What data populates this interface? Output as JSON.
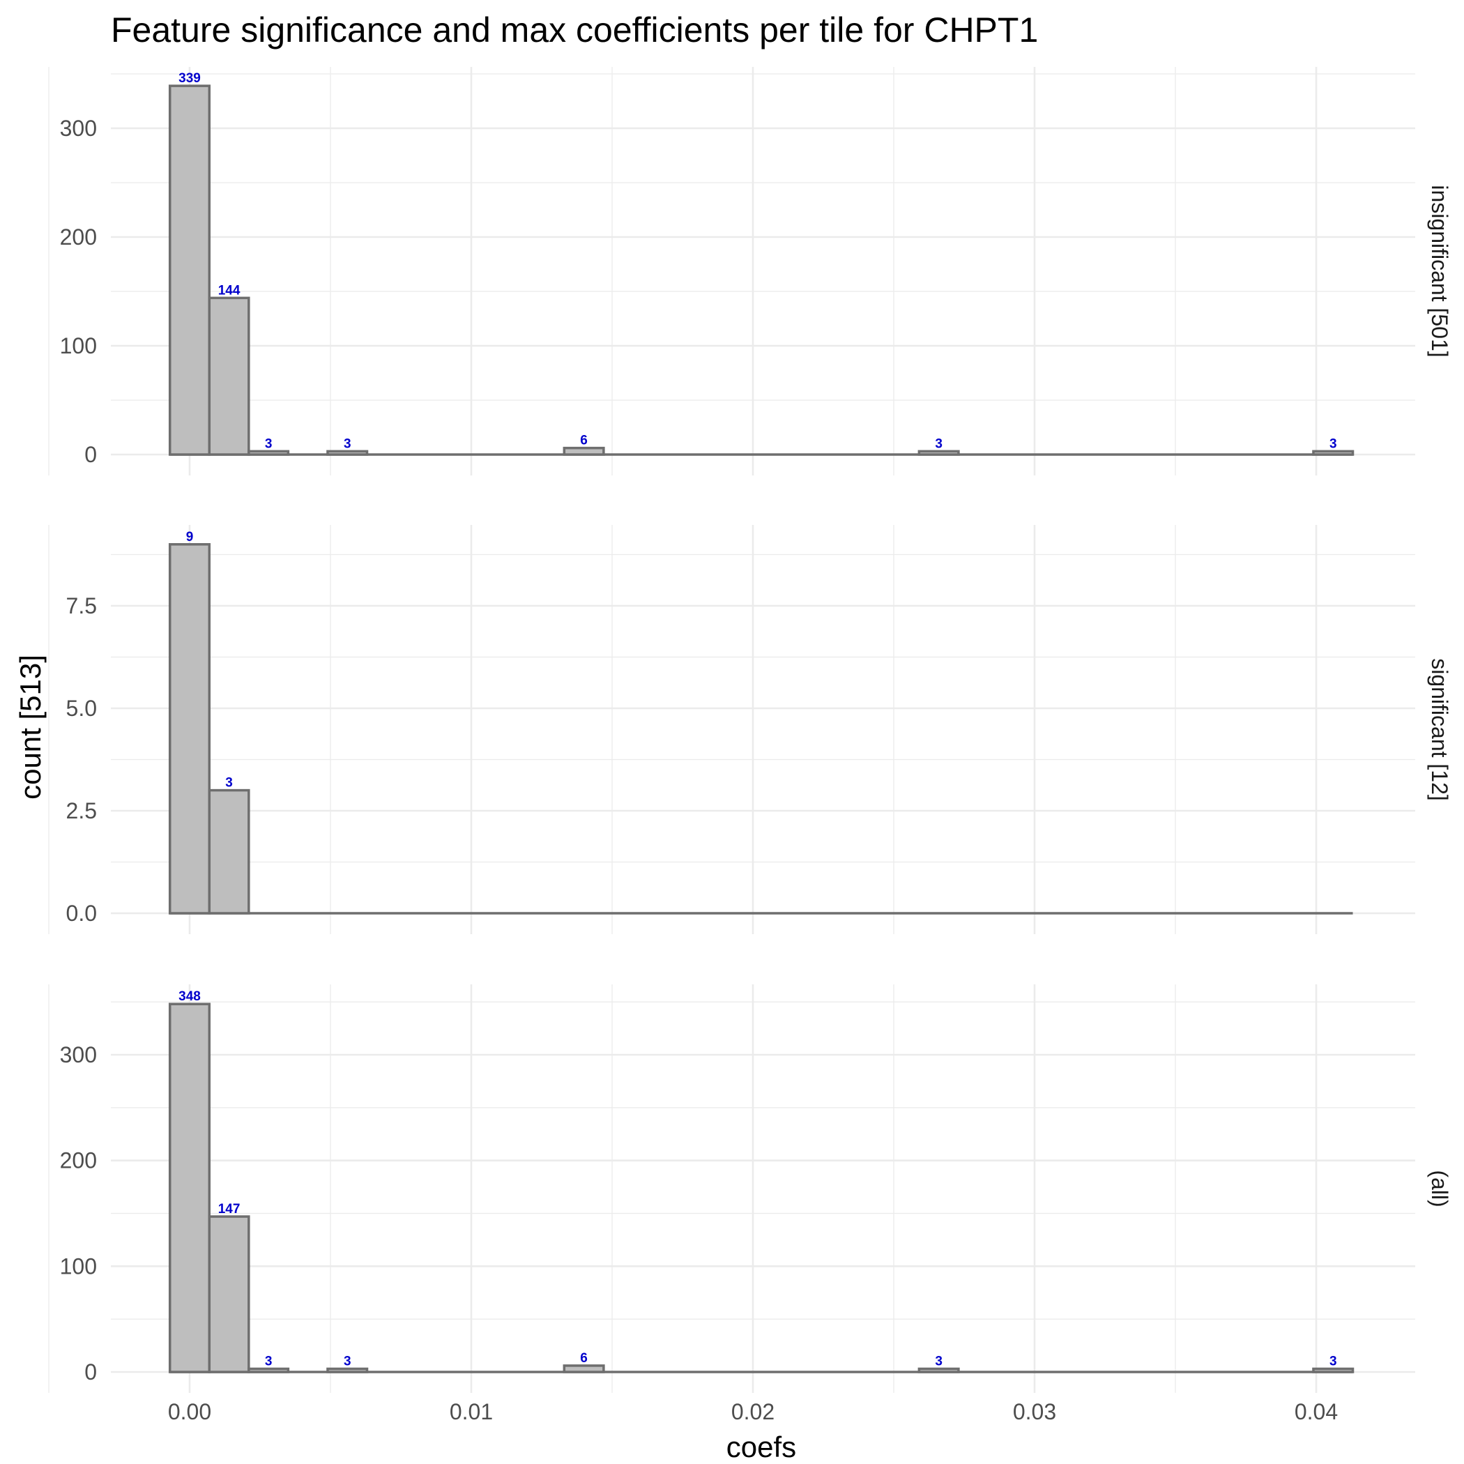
{
  "chart_data": {
    "type": "bar",
    "title": "Feature significance and max coefficients per tile for CHPT1",
    "xlabel": "coefs",
    "ylabel": "count [513]",
    "xlim": [
      -0.0028,
      0.0435
    ],
    "x_ticks": [
      0.0,
      0.01,
      0.02,
      0.03,
      0.04
    ],
    "x_tick_labels": [
      "0.00",
      "0.01",
      "0.02",
      "0.03",
      "0.04"
    ],
    "bin_width": 0.0014,
    "bin_centers": [
      0.0,
      0.0014,
      0.0028,
      0.0056,
      0.014,
      0.0266,
      0.0406
    ],
    "grid": true,
    "panels": [
      {
        "strip_label": "insignificant [501]",
        "ylim": [
          0,
          350
        ],
        "y_ticks": [
          0,
          100,
          200,
          300
        ],
        "y_tick_labels": [
          "0",
          "100",
          "200",
          "300"
        ],
        "values": [
          339,
          144,
          3,
          3,
          6,
          3,
          3
        ],
        "labels": [
          "339",
          "144",
          "3",
          "3",
          "6",
          "3",
          "3"
        ]
      },
      {
        "strip_label": "significant [12]",
        "ylim": [
          0,
          9
        ],
        "y_ticks": [
          0,
          2.5,
          5,
          7.5
        ],
        "y_tick_labels": [
          "0.0",
          "2.5",
          "5.0",
          "7.5"
        ],
        "values": [
          9,
          3,
          0,
          0,
          0,
          0,
          0
        ],
        "labels": [
          "9",
          "3",
          "",
          "",
          "",
          "",
          ""
        ]
      },
      {
        "strip_label": "(all)",
        "ylim": [
          0,
          348
        ],
        "y_ticks": [
          0,
          100,
          200,
          300
        ],
        "y_tick_labels": [
          "0",
          "100",
          "200",
          "300"
        ],
        "values": [
          348,
          147,
          3,
          3,
          6,
          3,
          3
        ],
        "labels": [
          "348",
          "147",
          "3",
          "3",
          "6",
          "3",
          "3"
        ]
      }
    ]
  }
}
